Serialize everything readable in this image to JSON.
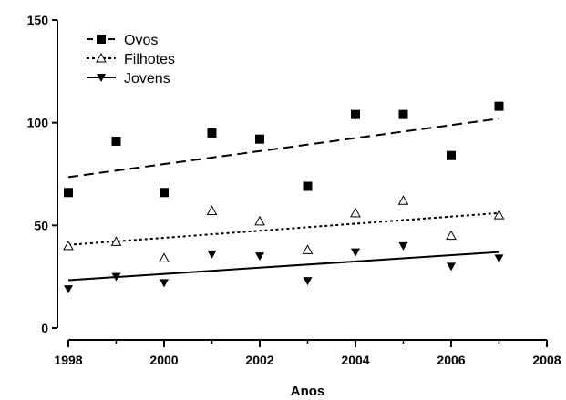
{
  "chart_data": {
    "type": "scatter",
    "title": "",
    "xlabel": "Anos",
    "ylabel": "",
    "xlim": [
      1998,
      2008
    ],
    "ylim": [
      0,
      150
    ],
    "xticks": [
      "1998",
      "2000",
      "2002",
      "2004",
      "2006",
      "2008"
    ],
    "yticks": [
      "0",
      "50",
      "100",
      "150"
    ],
    "grid": false,
    "legend_position": "top-left",
    "series": [
      {
        "name": "Ovos",
        "marker": "filled-square",
        "line_style": "dashed",
        "color": "#000000",
        "x": [
          1998,
          1999,
          2000,
          2001,
          2002,
          2003,
          2004,
          2005,
          2006,
          2007
        ],
        "y": [
          66,
          91,
          66,
          95,
          92,
          69,
          104,
          104,
          84,
          108
        ],
        "trend": {
          "x": [
            1998,
            2007
          ],
          "y": [
            73.5,
            102
          ]
        }
      },
      {
        "name": "Filhotes",
        "marker": "open-triangle-up",
        "line_style": "dotted",
        "color": "#000000",
        "x": [
          1998,
          1999,
          2000,
          2001,
          2002,
          2003,
          2004,
          2005,
          2006,
          2007
        ],
        "y": [
          40,
          42,
          34,
          57,
          52,
          38,
          56,
          62,
          45,
          55
        ],
        "trend": {
          "x": [
            1998,
            2007
          ],
          "y": [
            40.5,
            56
          ]
        }
      },
      {
        "name": "Jovens",
        "marker": "filled-triangle-down",
        "line_style": "solid",
        "color": "#000000",
        "x": [
          1998,
          1999,
          2000,
          2001,
          2002,
          2003,
          2004,
          2005,
          2006,
          2007
        ],
        "y": [
          19,
          25,
          22,
          36,
          35,
          23,
          37,
          40,
          30,
          34
        ],
        "trend": {
          "x": [
            1998,
            2007
          ],
          "y": [
            23.3,
            37
          ]
        }
      }
    ]
  }
}
